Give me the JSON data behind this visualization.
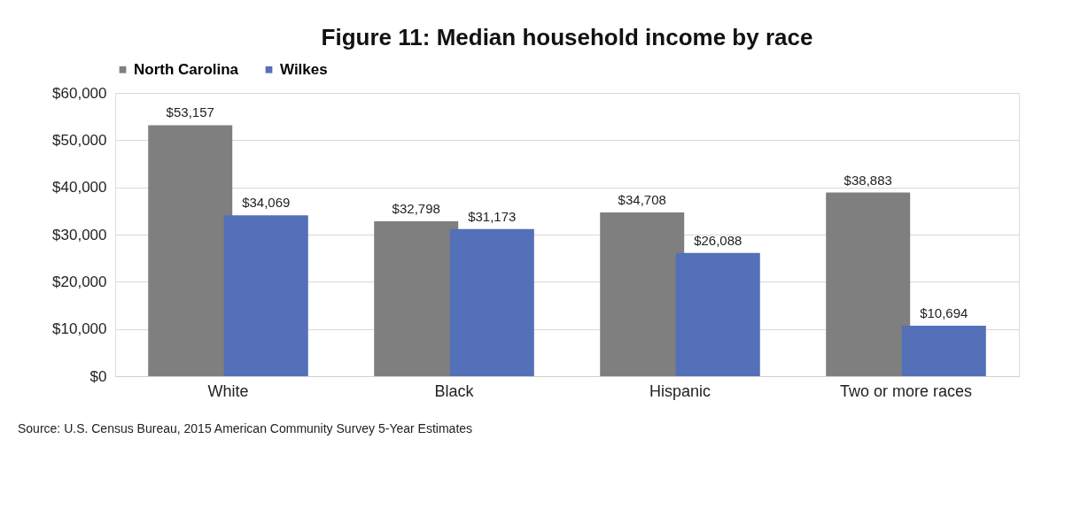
{
  "chart_data": {
    "type": "bar",
    "title": "Figure 11: Median household income by race",
    "categories": [
      "White",
      "Black",
      "Hispanic",
      "Two or more races"
    ],
    "series": [
      {
        "name": "North Carolina",
        "color": "#7f7f7f",
        "values": [
          53157,
          32798,
          34708,
          38883
        ],
        "value_labels": [
          "$53,157",
          "$32,798",
          "$34,708",
          "$38,883"
        ]
      },
      {
        "name": "Wilkes",
        "color": "#5470b8",
        "values": [
          34069,
          31173,
          26088,
          10694
        ],
        "value_labels": [
          "$34,069",
          "$31,173",
          "$26,088",
          "$10,694"
        ]
      }
    ],
    "ylim": [
      0,
      60000
    ],
    "yticks": [
      {
        "value": 0,
        "label": "$0"
      },
      {
        "value": 10000,
        "label": "$10,000"
      },
      {
        "value": 20000,
        "label": "$20,000"
      },
      {
        "value": 30000,
        "label": "$30,000"
      },
      {
        "value": 40000,
        "label": "$40,000"
      },
      {
        "value": 50000,
        "label": "$50,000"
      },
      {
        "value": 60000,
        "label": "$60,000"
      }
    ],
    "grid": "y",
    "legend": "top",
    "annotations": [
      "Source: U.S. Census Bureau, 2015 American Community Survey 5-Year Estimates"
    ]
  }
}
